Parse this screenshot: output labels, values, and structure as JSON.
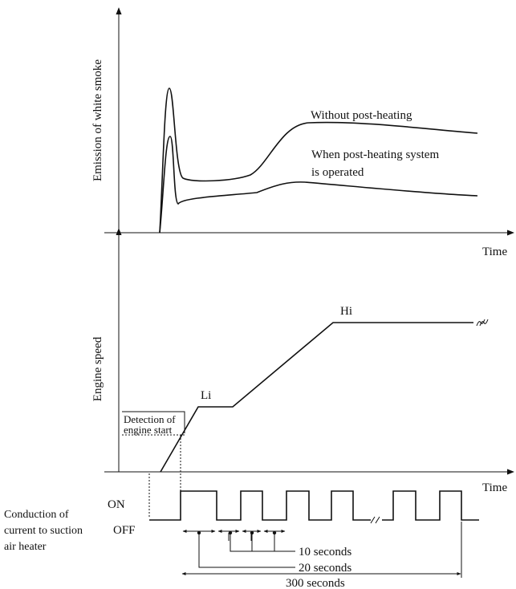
{
  "top_graph": {
    "y_label": "Emission of white smoke",
    "x_label": "Time",
    "curve_without_label": "Without post-heating",
    "curve_with_label": [
      "When post-heating system",
      "is operated"
    ]
  },
  "middle_graph": {
    "y_label": "Engine speed",
    "x_label": "Time",
    "hi_label": "Hi",
    "li_label": "Li",
    "detection_label": [
      "Detection of",
      "engine start"
    ]
  },
  "heater_graph": {
    "on_label": "ON",
    "off_label": "OFF",
    "description": [
      "Conduction of",
      "current to suction",
      "air heater"
    ],
    "interval_10": "10 seconds",
    "interval_20": "20 seconds",
    "interval_300": "300 seconds"
  }
}
